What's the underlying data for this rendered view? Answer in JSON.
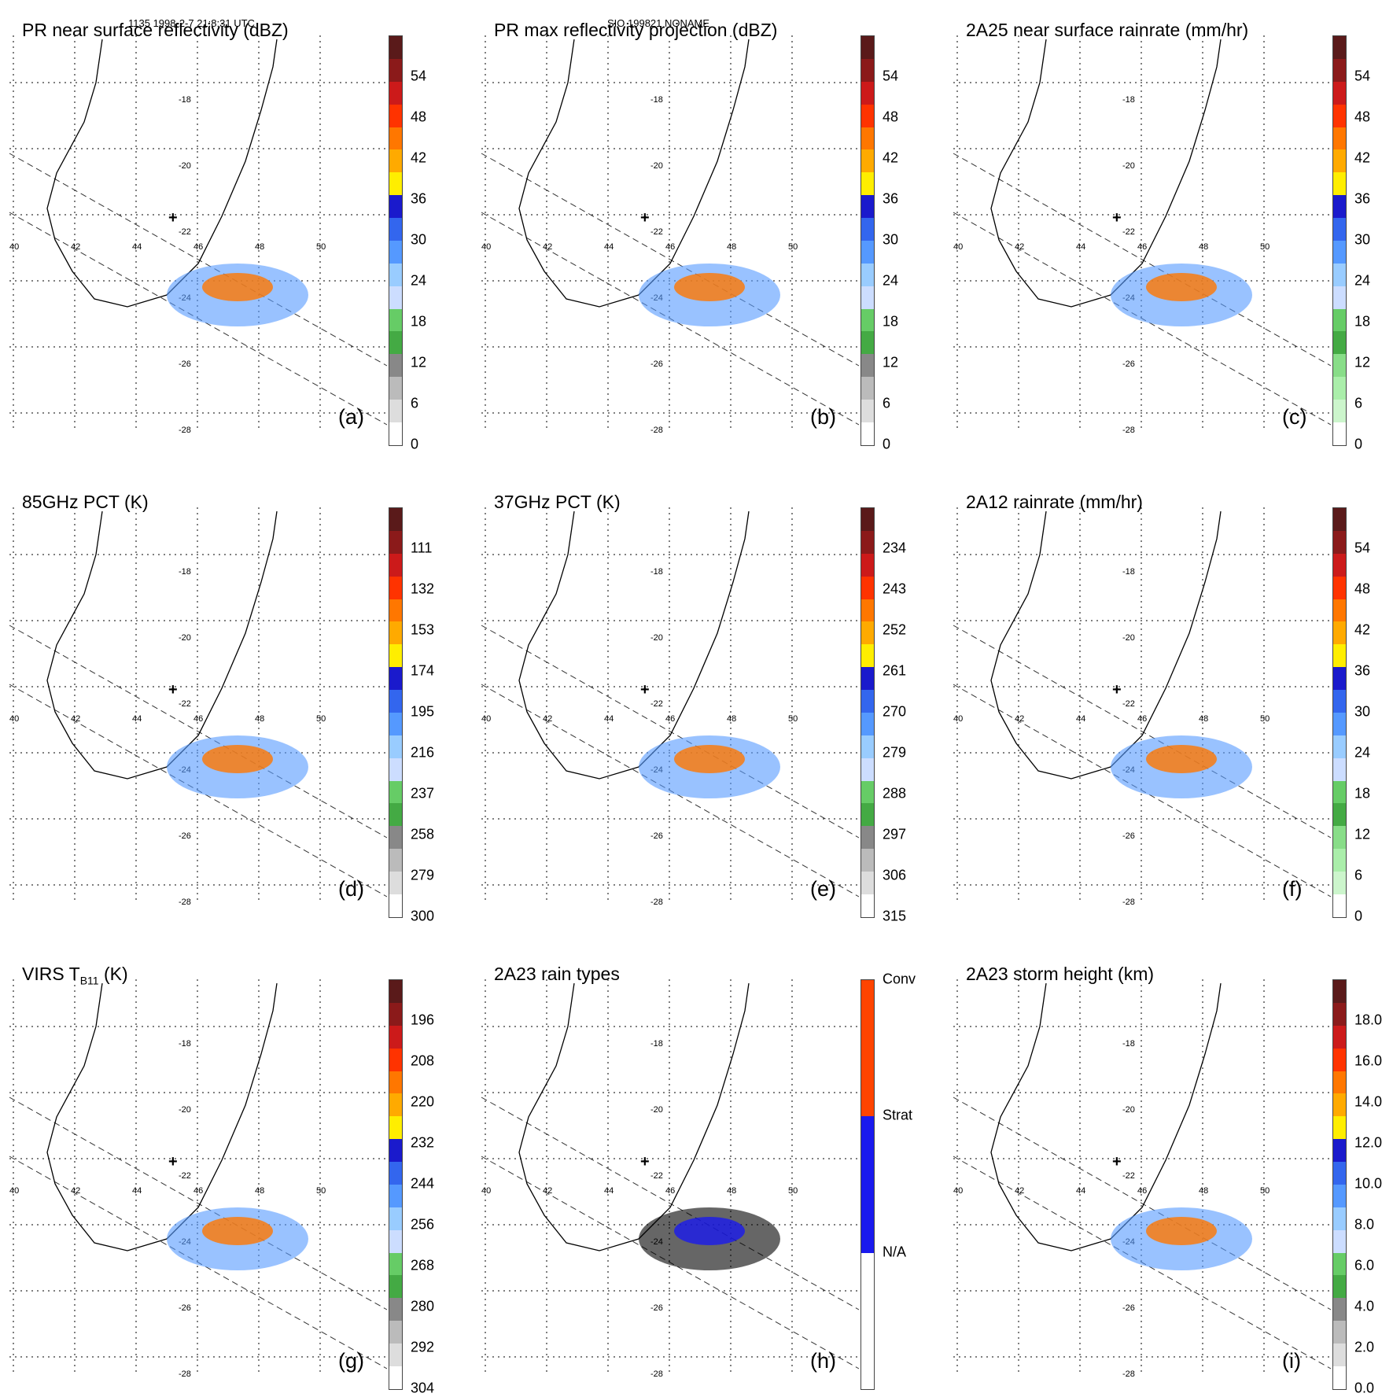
{
  "header": {
    "left": "1135 1998-2-7 21:8:31 UTC",
    "center": "SIO 199821 NONAME"
  },
  "map_labels": {
    "lat": [
      "-18",
      "-20",
      "-22",
      "-24",
      "-26",
      "-28"
    ],
    "lon": [
      "40",
      "42",
      "44",
      "46",
      "48",
      "50"
    ]
  },
  "panels": [
    {
      "id": "a",
      "title": "PR near surface reflectivity (dBZ)",
      "label": "(a)",
      "ticks": [
        "54",
        "48",
        "42",
        "36",
        "30",
        "24",
        "18",
        "12",
        "6",
        "0"
      ],
      "colors": [
        "#5a1a1a",
        "#8b1a1a",
        "#cc1a1a",
        "#ff3300",
        "#ff7700",
        "#ffaa00",
        "#ffee00",
        "#1a1acc",
        "#3366ee",
        "#5599ff",
        "#99ccff",
        "#ccddff",
        "#66cc66",
        "#44aa44",
        "#888888",
        "#bbbbbb",
        "#dddddd",
        "#ffffff"
      ]
    },
    {
      "id": "b",
      "title": "PR max reflectivity projection (dBZ)",
      "label": "(b)",
      "ticks": [
        "54",
        "48",
        "42",
        "36",
        "30",
        "24",
        "18",
        "12",
        "6",
        "0"
      ],
      "colors": [
        "#5a1a1a",
        "#8b1a1a",
        "#cc1a1a",
        "#ff3300",
        "#ff7700",
        "#ffaa00",
        "#ffee00",
        "#1a1acc",
        "#3366ee",
        "#5599ff",
        "#99ccff",
        "#ccddff",
        "#66cc66",
        "#44aa44",
        "#888888",
        "#bbbbbb",
        "#dddddd",
        "#ffffff"
      ]
    },
    {
      "id": "c",
      "title": "2A25 near surface rainrate (mm/hr)",
      "label": "(c)",
      "ticks": [
        "54",
        "48",
        "42",
        "36",
        "30",
        "24",
        "18",
        "12",
        "6",
        "0"
      ],
      "colors": [
        "#5a1a1a",
        "#8b1a1a",
        "#cc1a1a",
        "#ff3300",
        "#ff7700",
        "#ffaa00",
        "#ffee00",
        "#1a1acc",
        "#3366ee",
        "#5599ff",
        "#99ccff",
        "#ccddff",
        "#66cc66",
        "#44aa44",
        "#88dd88",
        "#aaeeaa",
        "#ccf5cc",
        "#ffffff"
      ]
    },
    {
      "id": "d",
      "title": "85GHz PCT (K)",
      "label": "(d)",
      "ticks": [
        "111",
        "132",
        "153",
        "174",
        "195",
        "216",
        "237",
        "258",
        "279",
        "300"
      ],
      "colors": [
        "#5a1a1a",
        "#8b1a1a",
        "#cc1a1a",
        "#ff3300",
        "#ff7700",
        "#ffaa00",
        "#ffee00",
        "#1a1acc",
        "#3366ee",
        "#5599ff",
        "#99ccff",
        "#ccddff",
        "#66cc66",
        "#44aa44",
        "#888888",
        "#bbbbbb",
        "#dddddd",
        "#ffffff"
      ]
    },
    {
      "id": "e",
      "title": "37GHz PCT (K)",
      "label": "(e)",
      "ticks": [
        "234",
        "243",
        "252",
        "261",
        "270",
        "279",
        "288",
        "297",
        "306",
        "315"
      ],
      "colors": [
        "#5a1a1a",
        "#8b1a1a",
        "#cc1a1a",
        "#ff3300",
        "#ff7700",
        "#ffaa00",
        "#ffee00",
        "#1a1acc",
        "#3366ee",
        "#5599ff",
        "#99ccff",
        "#ccddff",
        "#66cc66",
        "#44aa44",
        "#888888",
        "#bbbbbb",
        "#dddddd",
        "#ffffff"
      ]
    },
    {
      "id": "f",
      "title": "2A12 rainrate (mm/hr)",
      "label": "(f)",
      "ticks": [
        "54",
        "48",
        "42",
        "36",
        "30",
        "24",
        "18",
        "12",
        "6",
        "0"
      ],
      "colors": [
        "#5a1a1a",
        "#8b1a1a",
        "#cc1a1a",
        "#ff3300",
        "#ff7700",
        "#ffaa00",
        "#ffee00",
        "#1a1acc",
        "#3366ee",
        "#5599ff",
        "#99ccff",
        "#ccddff",
        "#66cc66",
        "#44aa44",
        "#88dd88",
        "#aaeeaa",
        "#ccf5cc",
        "#ffffff"
      ]
    },
    {
      "id": "g",
      "title": "VIRS T",
      "title_sub": "B11",
      "title_tail": " (K)",
      "label": "(g)",
      "ticks": [
        "196",
        "208",
        "220",
        "232",
        "244",
        "256",
        "268",
        "280",
        "292",
        "304"
      ],
      "colors": [
        "#5a1a1a",
        "#8b1a1a",
        "#cc1a1a",
        "#ff3300",
        "#ff7700",
        "#ffaa00",
        "#ffee00",
        "#1a1acc",
        "#3366ee",
        "#5599ff",
        "#99ccff",
        "#ccddff",
        "#66cc66",
        "#44aa44",
        "#888888",
        "#bbbbbb",
        "#dddddd",
        "#ffffff"
      ]
    },
    {
      "id": "h",
      "title": "2A23 rain types",
      "label": "(h)",
      "ticks": [
        "Conv",
        "Strat",
        "N/A"
      ],
      "colors": [
        "#ff4400",
        "#ff4400",
        "#ff4400",
        "#1a1aee",
        "#1a1aee",
        "#1a1aee",
        "#ffffff",
        "#ffffff",
        "#ffffff"
      ]
    },
    {
      "id": "i",
      "title": "2A23 storm height (km)",
      "label": "(i)",
      "ticks": [
        "18.0",
        "16.0",
        "14.0",
        "12.0",
        "10.0",
        "8.0",
        "6.0",
        "4.0",
        "2.0",
        "0.0"
      ],
      "colors": [
        "#5a1a1a",
        "#8b1a1a",
        "#cc1a1a",
        "#ff3300",
        "#ff7700",
        "#ffaa00",
        "#ffee00",
        "#1a1acc",
        "#3366ee",
        "#5599ff",
        "#99ccff",
        "#ccddff",
        "#66cc66",
        "#44aa44",
        "#888888",
        "#bbbbbb",
        "#dddddd",
        "#ffffff"
      ]
    }
  ]
}
